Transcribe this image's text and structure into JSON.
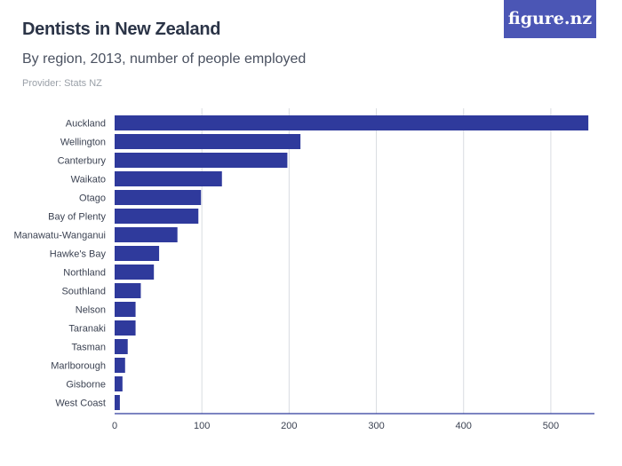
{
  "title": "Dentists in New Zealand",
  "subtitle": "By region, 2013, number of people employed",
  "provider": "Provider: Stats NZ",
  "logo": "figure.nz",
  "colors": {
    "bar": "#2f3a9c",
    "logo_bg": "#4b56b5"
  },
  "chart_data": {
    "type": "bar",
    "orientation": "horizontal",
    "categories": [
      "Auckland",
      "Wellington",
      "Canterbury",
      "Waikato",
      "Otago",
      "Bay of Plenty",
      "Manawatu-Wanganui",
      "Hawke's Bay",
      "Northland",
      "Southland",
      "Nelson",
      "Taranaki",
      "Tasman",
      "Marlborough",
      "Gisborne",
      "West Coast"
    ],
    "values": [
      543,
      213,
      198,
      123,
      99,
      96,
      72,
      51,
      45,
      30,
      24,
      24,
      15,
      12,
      9,
      6
    ],
    "xlim": [
      0,
      550
    ],
    "xticks": [
      0,
      100,
      200,
      300,
      400,
      500
    ],
    "grid": true,
    "xlabel": "",
    "ylabel": ""
  }
}
